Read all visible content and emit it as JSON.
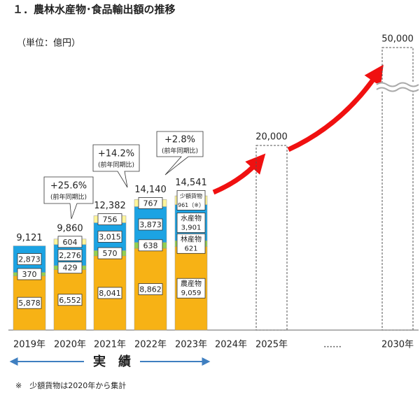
{
  "chart_data": {
    "type": "bar",
    "title": "１．農林水産物･食品輸出額の推移",
    "subtitle": "（単位：億円）",
    "categories": [
      "2019年",
      "2020年",
      "2021年",
      "2022年",
      "2023年",
      "2024年",
      "2025年",
      "……",
      "2030年"
    ],
    "series": [
      {
        "name": "農産物",
        "color": "#f7b215",
        "values": [
          5878,
          6552,
          8041,
          8862,
          9059,
          null,
          null,
          null,
          null
        ],
        "value_labels": [
          "5,878",
          "6,552",
          "8,041",
          "8,862",
          "9,059",
          null,
          null,
          null,
          null
        ]
      },
      {
        "name": "林産物",
        "color": "#92d050",
        "values": [
          370,
          429,
          570,
          638,
          621,
          null,
          null,
          null,
          null
        ]
      },
      {
        "name": "水産物",
        "color": "#1ca3e3",
        "values": [
          2873,
          2276,
          3015,
          3873,
          3901,
          null,
          null,
          null,
          null
        ],
        "value_labels": [
          "2,873",
          "2,276",
          "3,015",
          "3,873",
          "3,901",
          null,
          null,
          null,
          null
        ]
      },
      {
        "name": "少額貨物",
        "color": "#fff59a",
        "values": [
          null,
          604,
          756,
          767,
          961,
          null,
          null,
          null,
          null
        ],
        "value_labels": [
          null,
          "604",
          "756",
          "767",
          "961（※）",
          null,
          null,
          null,
          null
        ]
      }
    ],
    "totals": {
      "values": [
        9121,
        9860,
        12382,
        14140,
        14541,
        null,
        null,
        null,
        null
      ],
      "value_labels": [
        "9,121",
        "9,860",
        "12,382",
        "14,140",
        "14,541",
        null,
        null,
        null,
        null
      ]
    },
    "targets": {
      "values": [
        null,
        null,
        null,
        null,
        null,
        null,
        20000,
        null,
        50000
      ],
      "value_labels": [
        null,
        null,
        null,
        null,
        null,
        null,
        "20,000",
        null,
        "50,000"
      ]
    },
    "annotations": [
      {
        "text": "+25.6%",
        "note": "(前年同期比)"
      },
      {
        "text": "+14.2%",
        "note": "(前年同期比)"
      },
      {
        "text": "+2.8%",
        "note": "(前年同期比)"
      }
    ],
    "period_label": "実　績",
    "footnote": "※　少額貨物は2020年から集計"
  }
}
